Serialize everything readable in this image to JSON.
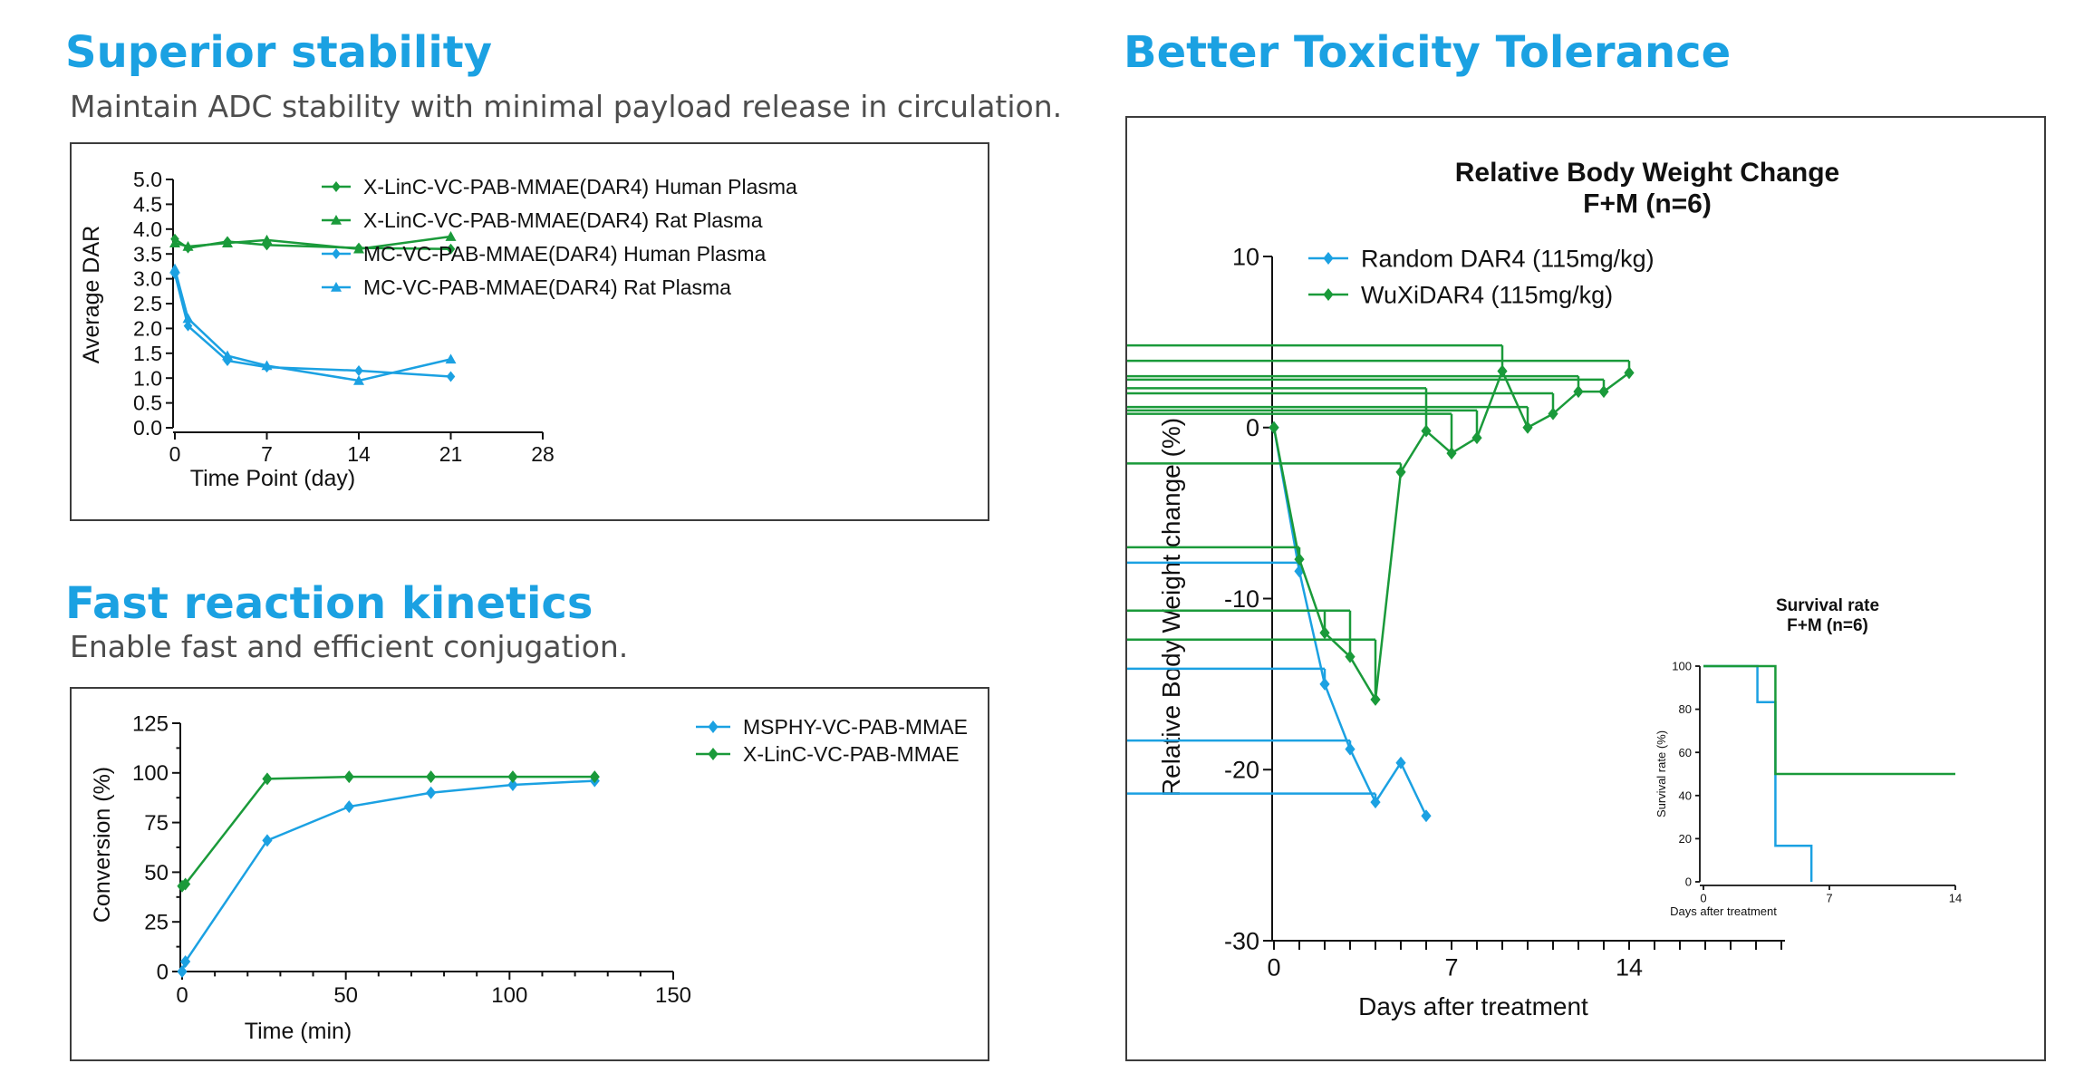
{
  "sections": {
    "stability": {
      "title": "Superior stability",
      "subtitle": "Maintain ADC stability with minimal payload release in circulation."
    },
    "kinetics": {
      "title": "Fast reaction kinetics",
      "subtitle": "Enable fast and efficient conjugation."
    },
    "toxicity": {
      "title": "Better Toxicity Tolerance"
    }
  },
  "colors": {
    "accent_title": "#1ba1e2",
    "green": "#1a9a3a",
    "blue": "#1ba1e2",
    "axis": "#111111"
  },
  "chart_data": [
    {
      "id": "stability",
      "type": "line",
      "xlabel": "Time Point (day)",
      "ylabel": "Average DAR",
      "xlim": [
        0,
        28
      ],
      "ylim": [
        0,
        5
      ],
      "xticks": [
        0,
        7,
        14,
        21,
        28
      ],
      "yticks": [
        0.0,
        0.5,
        1.0,
        1.5,
        2.0,
        2.5,
        3.0,
        3.5,
        4.0,
        4.5,
        5.0
      ],
      "ytick_decimals": 1,
      "legend_position": "top-right",
      "series": [
        {
          "name": "X-LinC-VC-PAB-MMAE(DAR4) Human Plasma",
          "color": "#1a9a3a",
          "marker": "diamond",
          "x": [
            0,
            1,
            4,
            7,
            14,
            21
          ],
          "y": [
            3.8,
            3.62,
            3.75,
            3.68,
            3.62,
            3.6
          ]
        },
        {
          "name": "X-LinC-VC-PAB-MMAE(DAR4) Rat Plasma",
          "color": "#1a9a3a",
          "marker": "triangle",
          "x": [
            0,
            1,
            4,
            7,
            14,
            21
          ],
          "y": [
            3.72,
            3.65,
            3.72,
            3.78,
            3.6,
            3.85
          ]
        },
        {
          "name": "MC-VC-PAB-MMAE(DAR4) Human Plasma",
          "color": "#1ba1e2",
          "marker": "diamond",
          "x": [
            0,
            1,
            4,
            7,
            14,
            21
          ],
          "y": [
            3.1,
            2.05,
            1.35,
            1.22,
            1.15,
            1.03
          ]
        },
        {
          "name": "MC-VC-PAB-MMAE(DAR4) Rat Plasma",
          "color": "#1ba1e2",
          "marker": "triangle",
          "x": [
            0,
            1,
            4,
            7,
            14,
            21
          ],
          "y": [
            3.2,
            2.2,
            1.45,
            1.25,
            0.95,
            1.38
          ]
        }
      ]
    },
    {
      "id": "kinetics",
      "type": "line",
      "xlabel": "Time (min)",
      "ylabel": "Conversion (%)",
      "xlim": [
        0,
        150
      ],
      "ylim": [
        0,
        125
      ],
      "xticks": [
        0,
        50,
        100,
        150
      ],
      "yticks": [
        0,
        25,
        50,
        75,
        100,
        125
      ],
      "ytick_decimals": 0,
      "legend_position": "top-right",
      "series": [
        {
          "name": "MSPHY-VC-PAB-MMAE",
          "color": "#1ba1e2",
          "marker": "diamond",
          "x": [
            0,
            1,
            26,
            51,
            76,
            101,
            126
          ],
          "y": [
            0,
            5,
            66,
            83,
            90,
            94,
            96
          ]
        },
        {
          "name": "X-LinC-VC-PAB-MMAE",
          "color": "#1a9a3a",
          "marker": "diamond",
          "x": [
            0,
            1,
            26,
            51,
            76,
            101,
            126
          ],
          "y": [
            43,
            44,
            97,
            98,
            98,
            98,
            98
          ]
        }
      ]
    },
    {
      "id": "bodyweight",
      "type": "line",
      "title": "Relative Body Weight Change",
      "subtitle": "F+M (n=6)",
      "xlabel": "Days after treatment",
      "ylabel": "Relative Body Weight change (%)",
      "xlim": [
        0,
        20
      ],
      "ylim": [
        -30,
        10
      ],
      "xticks": [
        0,
        7,
        14
      ],
      "yticks": [
        -30,
        -20,
        -10,
        0,
        10
      ],
      "ytick_decimals": 0,
      "legend_position": "top-left",
      "series": [
        {
          "name": "Random DAR4 (115mg/kg)",
          "color": "#1ba1e2",
          "marker": "diamond",
          "x": [
            0,
            1,
            2,
            3,
            4,
            5,
            6
          ],
          "y": [
            0,
            -8.4,
            -15,
            -18.8,
            -21.9,
            -19.6,
            -22.7
          ],
          "err": [
            0,
            0.5,
            0.9,
            0.5,
            0.5,
            0,
            0
          ]
        },
        {
          "name": "WuXiDAR4 (115mg/kg)",
          "color": "#1a9a3a",
          "marker": "diamond",
          "x": [
            0,
            1,
            2,
            3,
            4,
            5,
            6,
            7,
            8,
            9,
            10,
            11,
            12,
            13,
            14
          ],
          "y": [
            0,
            -7.7,
            -12,
            -13.4,
            -15.9,
            -2.6,
            -0.2,
            -1.5,
            -0.6,
            3.3,
            0,
            0.8,
            2.1,
            2.1,
            3.2
          ],
          "err": [
            0,
            0.7,
            1.3,
            2.7,
            3.5,
            0.5,
            2.5,
            2.3,
            1.6,
            1.5,
            1.2,
            1.2,
            0.9,
            0.7,
            0.7
          ]
        }
      ]
    },
    {
      "id": "survival",
      "type": "line",
      "title": "Survival rate",
      "subtitle": "F+M (n=6)",
      "xlabel": "Days after treatment",
      "ylabel": "Survival rate (%)",
      "xlim": [
        0,
        14
      ],
      "ylim": [
        0,
        100
      ],
      "xticks": [
        0,
        7,
        14
      ],
      "yticks": [
        0,
        20,
        40,
        60,
        80,
        100
      ],
      "ytick_decimals": 0,
      "series": [
        {
          "name": "Random DAR4 (115mg/kg)",
          "color": "#1ba1e2",
          "step": true,
          "x": [
            0,
            3,
            3,
            4,
            4,
            6,
            6
          ],
          "y": [
            100,
            100,
            83.3,
            83.3,
            16.7,
            16.7,
            0
          ]
        },
        {
          "name": "WuXiDAR4 (115mg/kg)",
          "color": "#1a9a3a",
          "step": true,
          "x": [
            0,
            4,
            4,
            14
          ],
          "y": [
            100,
            100,
            50,
            50
          ]
        }
      ]
    }
  ]
}
